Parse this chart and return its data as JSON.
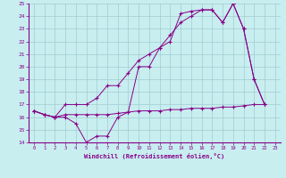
{
  "xlabel": "Windchill (Refroidissement éolien,°C)",
  "bg_color": "#c8eef0",
  "grid_color": "#a0ccd0",
  "line_color": "#880088",
  "xlim": [
    -0.5,
    23.5
  ],
  "ylim": [
    14,
    25
  ],
  "xticks": [
    0,
    1,
    2,
    3,
    4,
    5,
    6,
    7,
    8,
    9,
    10,
    11,
    12,
    13,
    14,
    15,
    16,
    17,
    18,
    19,
    20,
    21,
    22,
    23
  ],
  "yticks": [
    14,
    15,
    16,
    17,
    18,
    19,
    20,
    21,
    22,
    23,
    24,
    25
  ],
  "line1_x": [
    0,
    1,
    2,
    3,
    4,
    5,
    6,
    7,
    8,
    9,
    10,
    11,
    12,
    13,
    14,
    15,
    16,
    17,
    18,
    19,
    20,
    21,
    22
  ],
  "line1_y": [
    16.5,
    16.2,
    16.0,
    16.0,
    15.5,
    14.0,
    14.5,
    14.5,
    16.0,
    16.4,
    20.0,
    20.0,
    21.5,
    22.0,
    24.2,
    24.4,
    24.5,
    24.5,
    23.5,
    25.0,
    23.0,
    19.0,
    17.0
  ],
  "line2_x": [
    0,
    1,
    2,
    3,
    4,
    5,
    6,
    7,
    8,
    9,
    10,
    11,
    12,
    13,
    14,
    15,
    16,
    17,
    18,
    19,
    20,
    21,
    22
  ],
  "line2_y": [
    16.5,
    16.2,
    16.0,
    17.0,
    17.0,
    17.0,
    17.5,
    18.5,
    18.5,
    19.5,
    20.5,
    21.0,
    21.5,
    22.5,
    23.5,
    24.0,
    24.5,
    24.5,
    23.5,
    25.0,
    23.0,
    19.0,
    17.0
  ],
  "line3_x": [
    0,
    1,
    2,
    3,
    4,
    5,
    6,
    7,
    8,
    9,
    10,
    11,
    12,
    13,
    14,
    15,
    16,
    17,
    18,
    19,
    20,
    21,
    22
  ],
  "line3_y": [
    16.5,
    16.2,
    16.0,
    16.2,
    16.2,
    16.2,
    16.2,
    16.2,
    16.3,
    16.4,
    16.5,
    16.5,
    16.5,
    16.6,
    16.6,
    16.7,
    16.7,
    16.7,
    16.8,
    16.8,
    16.9,
    17.0,
    17.0
  ]
}
